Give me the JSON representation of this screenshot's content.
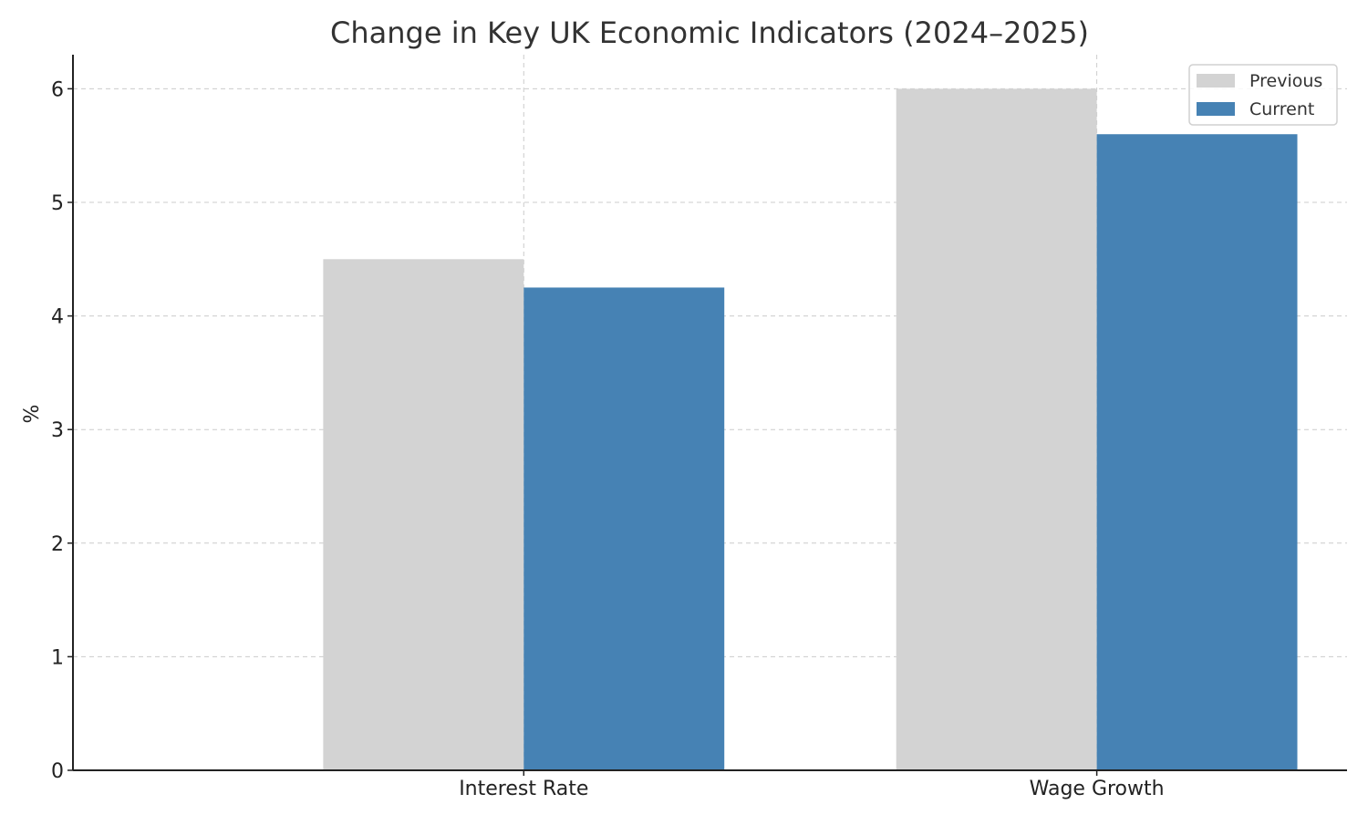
{
  "chart_data": {
    "type": "bar",
    "title": "Change in Key UK Economic Indicators (2024–2025)",
    "xlabel": "",
    "ylabel": "%",
    "categories": [
      "Interest Rate",
      "Wage Growth"
    ],
    "series": [
      {
        "name": "Previous",
        "values": [
          4.5,
          6.0
        ],
        "color": "#d3d3d3"
      },
      {
        "name": "Current",
        "values": [
          4.25,
          5.6
        ],
        "color": "#4682b4"
      }
    ],
    "ylim": [
      0,
      6.3
    ],
    "yticks": [
      0,
      1,
      2,
      3,
      4,
      5,
      6
    ],
    "grid": true,
    "legend": {
      "placement": "top-right"
    }
  }
}
